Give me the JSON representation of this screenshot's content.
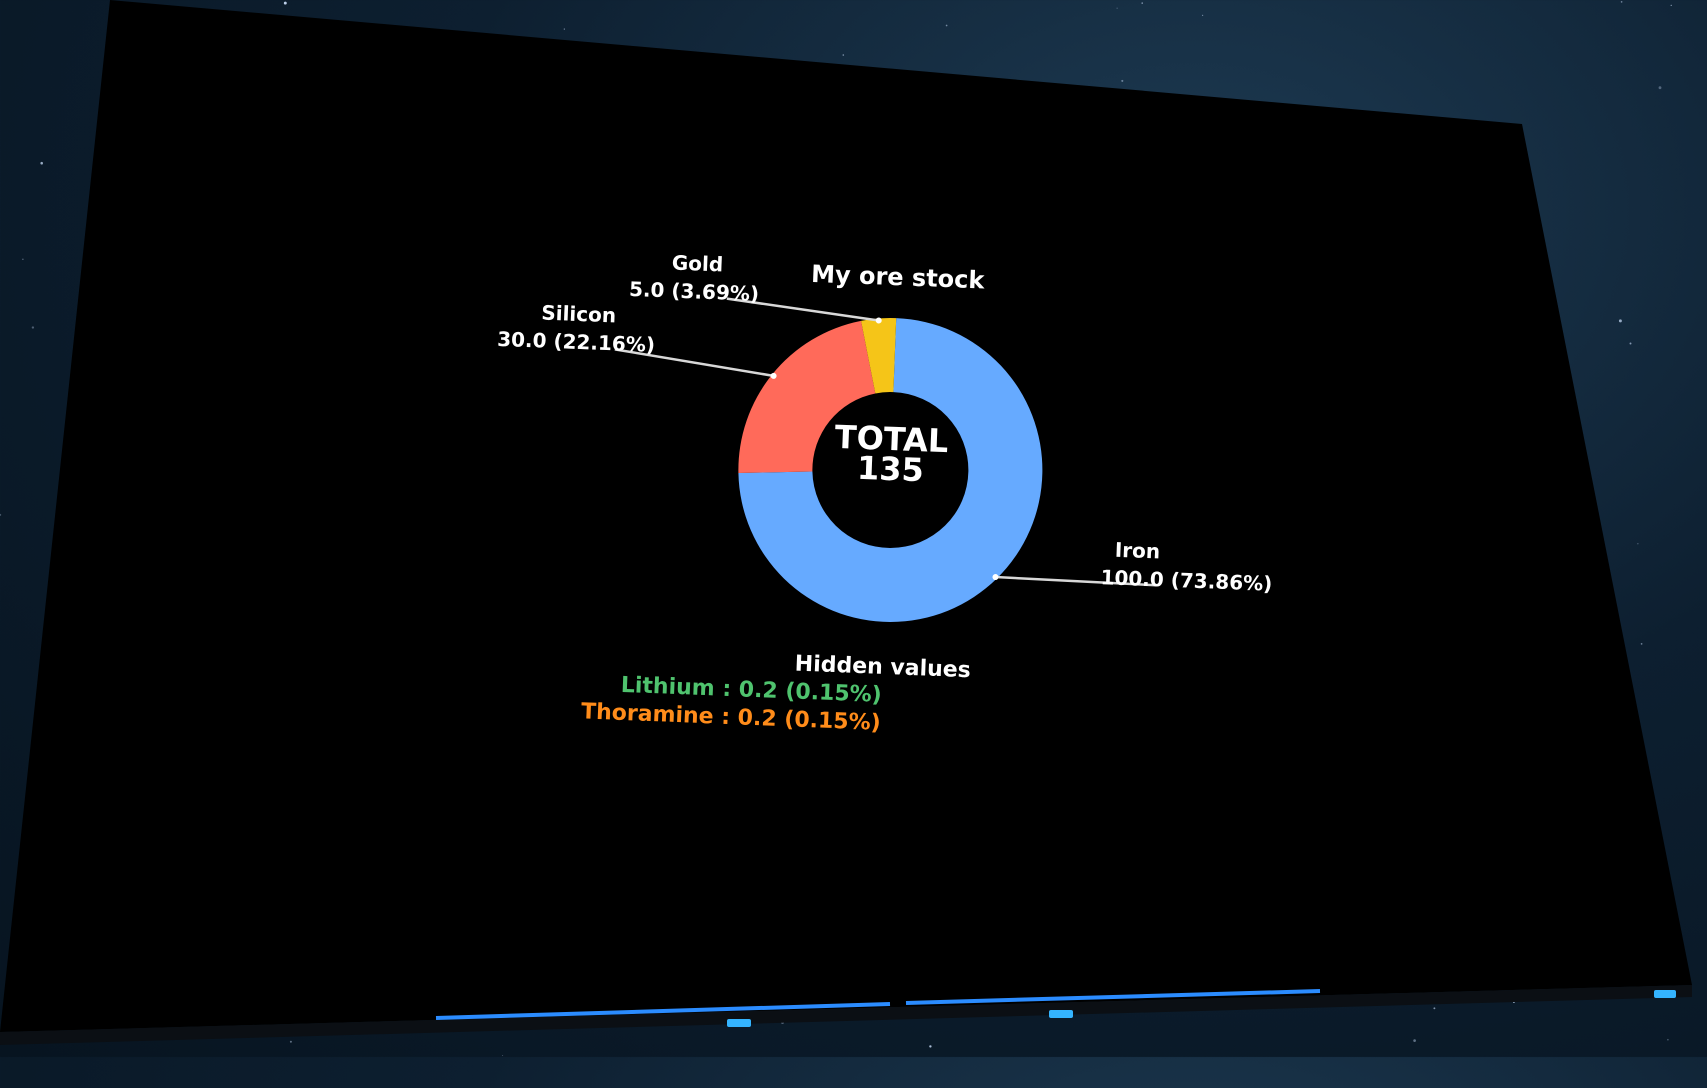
{
  "chart_data": {
    "type": "pie",
    "variant": "donut",
    "title": "My ore stock",
    "center_label": "TOTAL",
    "center_value": "135",
    "slices": [
      {
        "name": "Iron",
        "value": 100.0,
        "percent": 73.86,
        "label": "100.0 (73.86%)",
        "color": "#66aaff"
      },
      {
        "name": "Silicon",
        "value": 30.0,
        "percent": 22.16,
        "label": "30.0 (22.16%)",
        "color": "#ff6a5a"
      },
      {
        "name": "Gold",
        "value": 5.0,
        "percent": 3.69,
        "label": "5.0 (3.69%)",
        "color": "#f5c518"
      }
    ],
    "hidden_values_title": "Hidden values",
    "hidden_values": [
      {
        "text": "Lithium : 0.2 (0.15%)",
        "color": "#4fc36e"
      },
      {
        "text": "Thoramine : 0.2 (0.15%)",
        "color": "#ff8c1a"
      }
    ]
  },
  "colors": {
    "screen": "#000000",
    "text": "#ffffff",
    "leader_line": "#d8d8d8",
    "accent_light": "#2b8cff"
  }
}
